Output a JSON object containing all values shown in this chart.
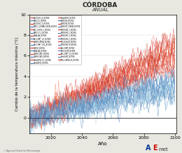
{
  "title": "CÓRDOBA",
  "subtitle": "ANUAL",
  "xlabel": "Año",
  "ylabel": "Cambio de la temperatura máxima (°C)",
  "xlim": [
    2006,
    2101
  ],
  "ylim": [
    -1.5,
    10
  ],
  "yticks": [
    0,
    2,
    4,
    6,
    8,
    10
  ],
  "xticks": [
    2020,
    2040,
    2060,
    2080,
    2100
  ],
  "bg_color": "#e8e8e0",
  "plot_bg": "#ffffff",
  "rcp85_colors": [
    "#d73027",
    "#f46d43",
    "#d62020",
    "#e05030",
    "#b22020",
    "#e74c3c",
    "#c0392b",
    "#a02020",
    "#b03a2e",
    "#e84030",
    "#d73027",
    "#e74c3c",
    "#c0392b",
    "#e84230",
    "#d73027",
    "#f46d43",
    "#e84230",
    "#d73027",
    "#c0392b",
    "#f06060",
    "#d44000",
    "#e84230",
    "#cc2222",
    "#ee5533"
  ],
  "rcp45_colors": [
    "#4575b4",
    "#74add1",
    "#5599cc",
    "#74add1",
    "#abd9e9",
    "#3366aa",
    "#74add1",
    "#abd9e9",
    "#4575b4",
    "#6699cc",
    "#4575b4",
    "#74add1",
    "#abd9e9",
    "#4575b4",
    "#74add1",
    "#abd9e9",
    "#4575b4",
    "#74add1",
    "#4575b4",
    "#74add1",
    "#5588bb",
    "#aaccee",
    "#3377bb",
    "#77bbdd"
  ],
  "n_rcp85": 24,
  "n_rcp45": 24,
  "year_start": 2006,
  "year_end": 2100,
  "legend_labels_col1": [
    "ACCESS1-0_RCP85",
    "ACCESS1-3_RCP85",
    "BCC-CSM1-1_RCP85",
    "BDALSA_RCP85",
    "CNRM-CM5A_RCP85",
    "CSIRO_RCP85",
    "CNRM-CM5_RCP85",
    "HadGEM2-CC_RCP85",
    "HadGEM2_RCP85",
    "INMCM4_RCP85",
    "MPIESM1.1_RCP85",
    "MPIESM1.2_RCP85",
    "MPILR2020_RCP85",
    "Bel-CMIP_RCP85",
    "Bel-CMIP_1.0_RCP85",
    "IPSL-CM5A-LR_RCP85"
  ],
  "legend_labels_col2": [
    "MIROC5_RCP85",
    "MIROC_ESMA-CHEM_RCP85",
    "MIROC5.1_RCP85",
    "Bel-CMIP_1.0_RCP85",
    "Bel-CMIP_1.0s_RCP85",
    "BDALSA_RCP85",
    "CNRM-CM5_RCP85",
    "HadGEM2_RCP85",
    "INMCM4_RCP85",
    "INMCM5_CNRM_RCP85",
    "MPIESM1.1_RCP85",
    "MPIESM1.2_RCP85",
    "MPIESM1.R_RCP85",
    "MRICGCM_RCP85",
    "NorESM1_RCP85"
  ],
  "footer_text": "© Agencia Estatal de Meteorología"
}
